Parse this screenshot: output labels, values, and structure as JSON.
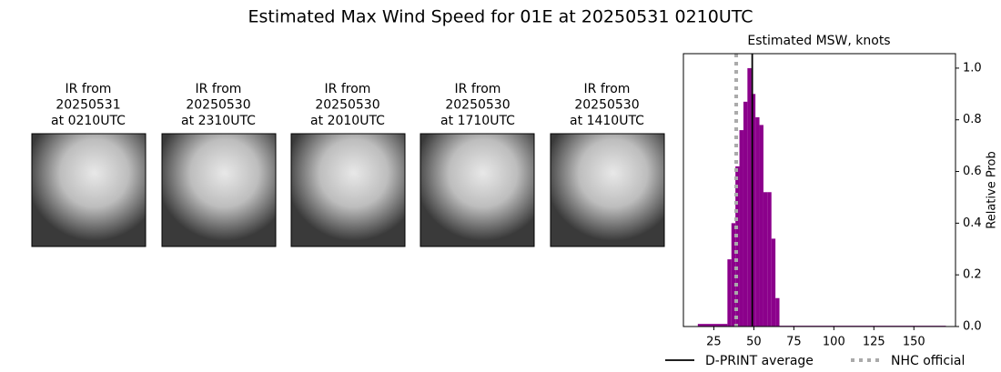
{
  "title": "Estimated Max Wind Speed for 01E at 20250531 0210UTC",
  "panels": [
    {
      "lines": [
        "IR from",
        "20250531",
        "at 0210UTC"
      ]
    },
    {
      "lines": [
        "IR from",
        "20250530",
        "at 2310UTC"
      ]
    },
    {
      "lines": [
        "IR from",
        "20250530",
        "at 2010UTC"
      ]
    },
    {
      "lines": [
        "IR from",
        "20250530",
        "at 1710UTC"
      ]
    },
    {
      "lines": [
        "IR from",
        "20250530",
        "at 1410UTC"
      ]
    }
  ],
  "chart_data": {
    "type": "histogram",
    "title": "Estimated MSW, knots",
    "y_label": "Relative Prob",
    "color": "#8b008b",
    "bins": [
      15,
      33.5,
      36,
      38.5,
      41,
      43.5,
      46,
      48.5,
      51,
      53.5,
      56,
      58.5,
      61,
      63.5,
      66,
      170
    ],
    "values": [
      0.01,
      0.26,
      0.4,
      0.62,
      0.76,
      0.87,
      1.0,
      0.9,
      0.81,
      0.78,
      0.52,
      0.52,
      0.34,
      0.11,
      0.003
    ],
    "xlim": [
      6,
      176
    ],
    "ylim": [
      0,
      1.056
    ],
    "xticks": [
      25,
      50,
      75,
      100,
      125,
      150
    ],
    "yticks": [
      {
        "value": 0,
        "label": "0.0"
      },
      {
        "value": 0.2,
        "label": "0.2"
      },
      {
        "value": 0.4,
        "label": "0.4"
      },
      {
        "value": 0.6,
        "label": "0.6"
      },
      {
        "value": 0.8,
        "label": "0.8"
      },
      {
        "value": 1.0,
        "label": "1.0"
      }
    ],
    "lines": [
      {
        "name": "D-PRINT average",
        "value": 49,
        "color": "#000000",
        "style": "solid"
      },
      {
        "name": "NHC official",
        "value": 39,
        "color": "#aaaaaa",
        "style": "dotted"
      }
    ]
  }
}
